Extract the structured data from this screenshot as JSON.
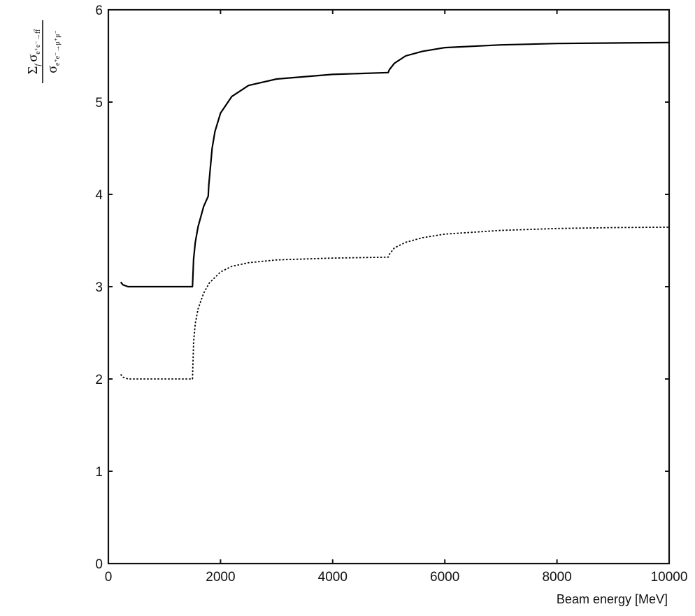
{
  "chart_data": {
    "type": "line",
    "title": "",
    "xlabel": "Beam energy [MeV]",
    "ylabel": "Σf σe+e−→ff̄ / σe+e−→μ+μ−",
    "ylabel_parts": {
      "sum": "Σ",
      "sum_sub": "f",
      "num_sigma": "σ",
      "num_sub": "e⁺e⁻→ff̄",
      "den_sigma": "σ",
      "den_sub": "e⁺e⁻→μ⁺μ⁻"
    },
    "xlim": [
      0,
      10000
    ],
    "ylim": [
      0,
      6
    ],
    "xticks": [
      0,
      2000,
      4000,
      6000,
      8000,
      10000
    ],
    "xtick_labels": [
      "0",
      "2000",
      "4000",
      "6000",
      "8000",
      "10000"
    ],
    "yticks": [
      0,
      1,
      2,
      3,
      4,
      5,
      6
    ],
    "ytick_labels": [
      "0",
      "1",
      "2",
      "3",
      "4",
      "5",
      "6"
    ],
    "grid": false,
    "legend": "none",
    "series": [
      {
        "style": "solid",
        "color": "#000000",
        "points": [
          [
            220,
            3.05
          ],
          [
            260,
            3.02
          ],
          [
            350,
            3.0
          ],
          [
            800,
            3.0
          ],
          [
            1500,
            3.0
          ],
          [
            1500,
            3.0
          ],
          [
            1520,
            3.3
          ],
          [
            1550,
            3.48
          ],
          [
            1600,
            3.65
          ],
          [
            1700,
            3.87
          ],
          [
            1780,
            3.98
          ],
          [
            1790,
            4.1
          ],
          [
            1850,
            4.5
          ],
          [
            1900,
            4.68
          ],
          [
            2000,
            4.88
          ],
          [
            2200,
            5.06
          ],
          [
            2500,
            5.18
          ],
          [
            3000,
            5.25
          ],
          [
            4000,
            5.3
          ],
          [
            4990,
            5.32
          ],
          [
            5010,
            5.35
          ],
          [
            5100,
            5.42
          ],
          [
            5300,
            5.5
          ],
          [
            5600,
            5.55
          ],
          [
            6000,
            5.59
          ],
          [
            7000,
            5.62
          ],
          [
            8000,
            5.635
          ],
          [
            9000,
            5.64
          ],
          [
            10000,
            5.645
          ]
        ]
      },
      {
        "style": "dotted",
        "color": "#000000",
        "points": [
          [
            220,
            2.05
          ],
          [
            260,
            2.02
          ],
          [
            350,
            2.0
          ],
          [
            800,
            2.0
          ],
          [
            1500,
            2.0
          ],
          [
            1500,
            2.0
          ],
          [
            1520,
            2.4
          ],
          [
            1550,
            2.6
          ],
          [
            1600,
            2.76
          ],
          [
            1700,
            2.93
          ],
          [
            1800,
            3.04
          ],
          [
            2000,
            3.16
          ],
          [
            2200,
            3.22
          ],
          [
            2500,
            3.26
          ],
          [
            3000,
            3.29
          ],
          [
            4000,
            3.31
          ],
          [
            4990,
            3.32
          ],
          [
            5010,
            3.35
          ],
          [
            5100,
            3.42
          ],
          [
            5300,
            3.48
          ],
          [
            5600,
            3.53
          ],
          [
            6000,
            3.57
          ],
          [
            7000,
            3.61
          ],
          [
            8000,
            3.63
          ],
          [
            9000,
            3.64
          ],
          [
            10000,
            3.645
          ]
        ]
      }
    ]
  }
}
